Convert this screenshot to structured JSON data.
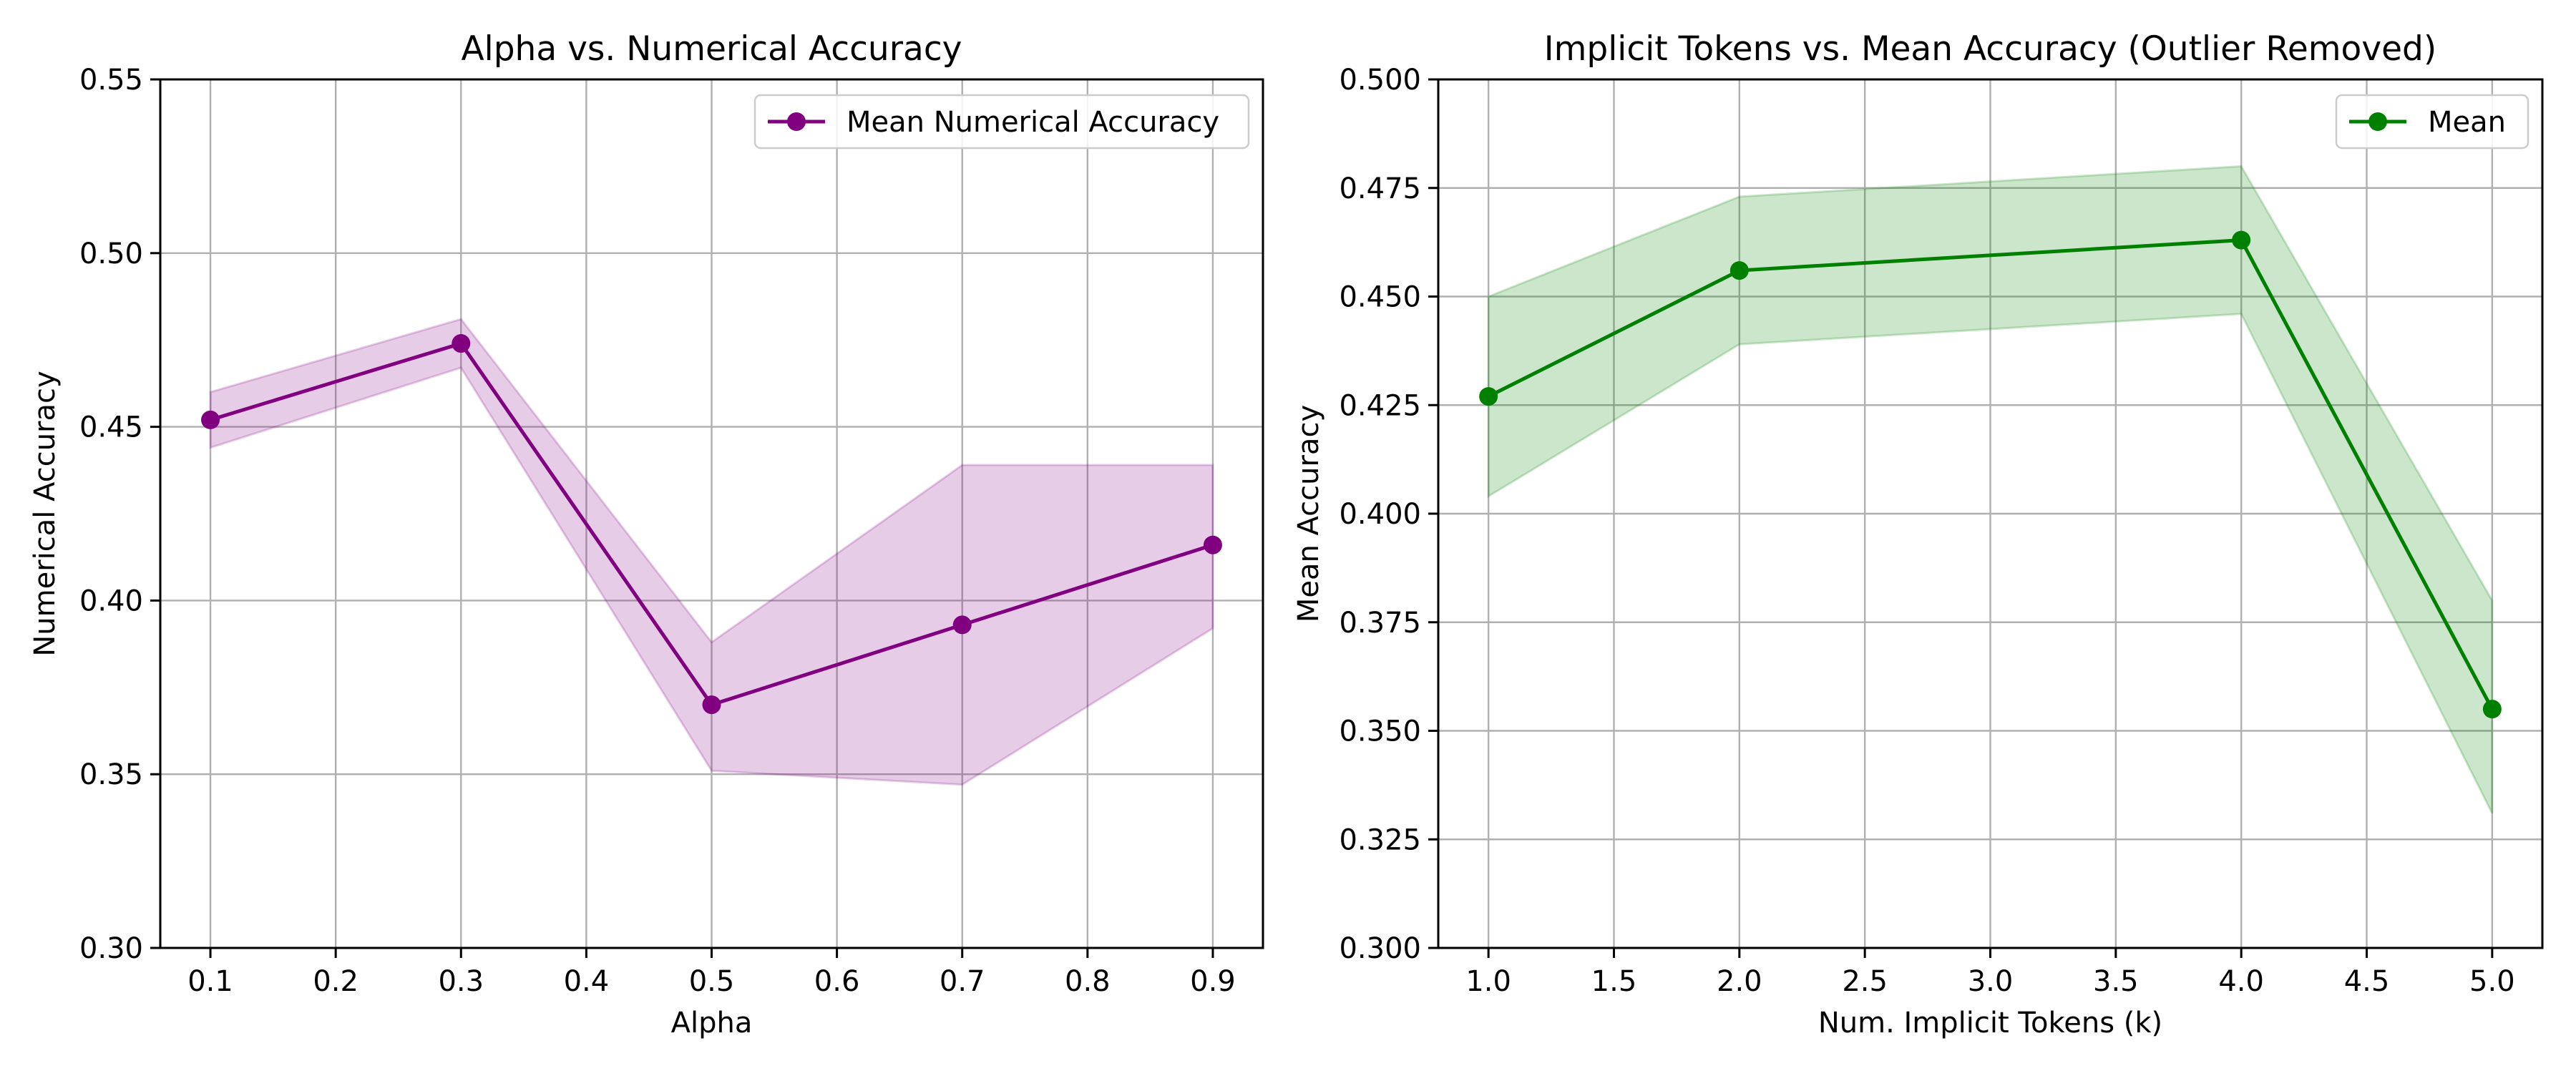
{
  "chart_data": [
    {
      "type": "line",
      "title": "Alpha vs. Numerical Accuracy",
      "xlabel": "Alpha",
      "ylabel": "Numerical Accuracy",
      "xlim": [
        0.06,
        0.94
      ],
      "ylim": [
        0.3,
        0.55
      ],
      "xticks": [
        0.1,
        0.2,
        0.3,
        0.4,
        0.5,
        0.6,
        0.7,
        0.8,
        0.9
      ],
      "yticks": [
        0.3,
        0.35,
        0.4,
        0.45,
        0.5,
        0.55
      ],
      "xtick_labels": [
        "0.1",
        "0.2",
        "0.3",
        "0.4",
        "0.5",
        "0.6",
        "0.7",
        "0.8",
        "0.9"
      ],
      "ytick_labels": [
        "0.30",
        "0.35",
        "0.40",
        "0.45",
        "0.50",
        "0.55"
      ],
      "grid": true,
      "legend": "top-right",
      "color": "#800080",
      "series": [
        {
          "name": "Mean Numerical Accuracy",
          "x": [
            0.1,
            0.3,
            0.5,
            0.7,
            0.9
          ],
          "y": [
            0.452,
            0.474,
            0.37,
            0.393,
            0.416
          ],
          "lower": [
            0.444,
            0.467,
            0.351,
            0.347,
            0.392
          ],
          "upper": [
            0.46,
            0.481,
            0.388,
            0.439,
            0.439
          ]
        }
      ]
    },
    {
      "type": "line",
      "title": "Implicit Tokens vs. Mean Accuracy (Outlier Removed)",
      "xlabel": "Num. Implicit Tokens (k)",
      "ylabel": "Mean Accuracy",
      "xlim": [
        0.8,
        5.2
      ],
      "ylim": [
        0.3,
        0.5
      ],
      "xticks": [
        1.0,
        1.5,
        2.0,
        2.5,
        3.0,
        3.5,
        4.0,
        4.5,
        5.0
      ],
      "yticks": [
        0.3,
        0.325,
        0.35,
        0.375,
        0.4,
        0.425,
        0.45,
        0.475,
        0.5
      ],
      "xtick_labels": [
        "1.0",
        "1.5",
        "2.0",
        "2.5",
        "3.0",
        "3.5",
        "4.0",
        "4.5",
        "5.0"
      ],
      "ytick_labels": [
        "0.300",
        "0.325",
        "0.350",
        "0.375",
        "0.400",
        "0.425",
        "0.450",
        "0.475",
        "0.500"
      ],
      "grid": true,
      "legend": "top-right",
      "color": "#008000",
      "series": [
        {
          "name": "Mean",
          "x": [
            1.0,
            2.0,
            4.0,
            5.0
          ],
          "y": [
            0.427,
            0.456,
            0.463,
            0.355
          ],
          "lower": [
            0.404,
            0.439,
            0.446,
            0.331
          ],
          "upper": [
            0.45,
            0.473,
            0.48,
            0.38
          ]
        }
      ]
    }
  ]
}
